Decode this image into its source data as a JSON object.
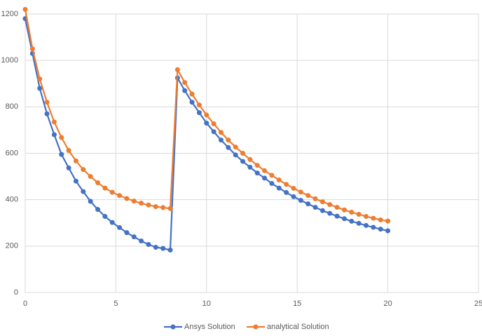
{
  "chart_data": {
    "type": "line",
    "x": [
      0,
      0.4,
      0.8,
      1.2,
      1.6,
      2,
      2.4,
      2.8,
      3.2,
      3.6,
      4,
      4.4,
      4.8,
      5.2,
      5.6,
      6,
      6.4,
      6.8,
      7.2,
      7.6,
      8,
      8.4,
      8.8,
      9.2,
      9.6,
      10,
      10.4,
      10.8,
      11.2,
      11.6,
      12,
      12.4,
      12.8,
      13.2,
      13.6,
      14,
      14.4,
      14.8,
      15.2,
      15.6,
      16,
      16.4,
      16.8,
      17.2,
      17.6,
      18,
      18.4,
      18.8,
      19.2,
      19.6,
      20
    ],
    "series": [
      {
        "name": "Ansys Solution",
        "color": "#4472c4",
        "values": [
          1180,
          1030,
          880,
          770,
          680,
          595,
          537,
          480,
          435,
          393,
          358,
          328,
          302,
          280,
          258,
          240,
          222,
          207,
          195,
          190,
          183,
          925,
          870,
          820,
          775,
          730,
          693,
          657,
          625,
          593,
          565,
          540,
          515,
          493,
          470,
          450,
          431,
          413,
          397,
          382,
          367,
          353,
          341,
          329,
          318,
          307,
          298,
          289,
          281,
          273,
          266
        ]
      },
      {
        "name": "analytical Solution",
        "color": "#ed7d31",
        "values": [
          1220,
          1050,
          920,
          820,
          735,
          668,
          612,
          567,
          530,
          500,
          473,
          450,
          432,
          418,
          405,
          394,
          385,
          377,
          370,
          366,
          362,
          960,
          905,
          855,
          808,
          765,
          727,
          690,
          657,
          627,
          600,
          573,
          548,
          525,
          505,
          485,
          466,
          449,
          433,
          418,
          404,
          391,
          379,
          367,
          356,
          346,
          337,
          328,
          320,
          313,
          308
        ]
      }
    ],
    "xlim": [
      0,
      25
    ],
    "xticks": [
      0,
      5,
      10,
      15,
      20,
      25
    ],
    "ylim": [
      0,
      1200
    ],
    "yticks": [
      0,
      200,
      400,
      600,
      800,
      1000,
      1200
    ],
    "grid": true,
    "legend": "bottom"
  }
}
